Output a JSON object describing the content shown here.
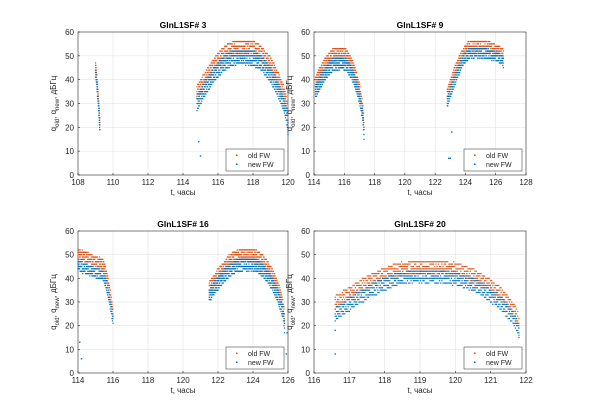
{
  "chart_data": [
    {
      "type": "scatter",
      "title": "GlnL1SF# 3",
      "xlabel": "t, часы",
      "ylabel": "q_old, q_new, дБГц",
      "xlim": [
        108,
        120
      ],
      "ylim": [
        0,
        60
      ],
      "xticks": [
        108,
        110,
        112,
        114,
        116,
        118,
        120
      ],
      "yticks": [
        0,
        10,
        20,
        30,
        40,
        50,
        60
      ],
      "grid": true,
      "legend": "bottom-right",
      "series": [
        {
          "name": "old FW",
          "color": "#d95319",
          "segments": [
            {
              "t0": 109.0,
              "t1": 109.25,
              "shape": "drop",
              "peak": 47,
              "end": 24,
              "spread": 4
            },
            {
              "t0": 114.8,
              "t1": 120.0,
              "shape": "arc",
              "start": 37,
              "peak": 56,
              "end": 27,
              "spread": 7
            }
          ]
        },
        {
          "name": "new FW",
          "color": "#0072bd",
          "segments": [
            {
              "t0": 109.0,
              "t1": 109.25,
              "shape": "drop",
              "peak": 44,
              "end": 21,
              "spread": 4
            },
            {
              "t0": 114.8,
              "t1": 120.0,
              "shape": "arc",
              "start": 33,
              "peak": 52,
              "end": 22,
              "spread": 7
            }
          ],
          "outliers": [
            [
              114.9,
              14
            ],
            [
              115.0,
              8
            ]
          ]
        }
      ]
    },
    {
      "type": "scatter",
      "title": "GlnL1SF# 9",
      "xlabel": "t, часы",
      "ylabel": "q_old, q_new, дБГц",
      "xlim": [
        114,
        128
      ],
      "ylim": [
        0,
        60
      ],
      "xticks": [
        114,
        116,
        118,
        120,
        122,
        124,
        126,
        128
      ],
      "yticks": [
        0,
        10,
        20,
        30,
        40,
        50,
        60
      ],
      "grid": true,
      "legend": "bottom-right",
      "series": [
        {
          "name": "old FW",
          "color": "#d95319",
          "segments": [
            {
              "t0": 114.1,
              "t1": 117.3,
              "shape": "arc",
              "start": 41,
              "peak": 53,
              "end": 22,
              "spread": 6
            },
            {
              "t0": 122.8,
              "t1": 126.5,
              "shape": "arc",
              "start": 36,
              "peak": 56,
              "end": 52,
              "spread": 5
            }
          ]
        },
        {
          "name": "new FW",
          "color": "#0072bd",
          "segments": [
            {
              "t0": 114.1,
              "t1": 117.3,
              "shape": "arc",
              "start": 37,
              "peak": 49,
              "end": 20,
              "spread": 6
            },
            {
              "t0": 122.8,
              "t1": 126.5,
              "shape": "arc",
              "start": 32,
              "peak": 53,
              "end": 49,
              "spread": 5
            }
          ],
          "outliers": [
            [
              122.9,
              7
            ],
            [
              123.0,
              7
            ],
            [
              123.1,
              18
            ]
          ]
        }
      ]
    },
    {
      "type": "scatter",
      "title": "GlnL1SF# 16",
      "xlabel": "t, часы",
      "ylabel": "q_old, q_new, дБГц",
      "xlim": [
        114,
        126
      ],
      "ylim": [
        0,
        60
      ],
      "xticks": [
        114,
        116,
        118,
        120,
        122,
        124,
        126
      ],
      "yticks": [
        0,
        10,
        20,
        30,
        40,
        50,
        60
      ],
      "grid": true,
      "legend": "bottom-right",
      "series": [
        {
          "name": "old FW",
          "color": "#d95319",
          "segments": [
            {
              "t0": 114.0,
              "t1": 116.0,
              "shape": "fall",
              "start": 52,
              "peak": 52,
              "end": 27,
              "spread": 5
            },
            {
              "t0": 121.5,
              "t1": 125.8,
              "shape": "arc",
              "start": 38,
              "peak": 52,
              "end": 25,
              "spread": 6
            }
          ]
        },
        {
          "name": "new FW",
          "color": "#0072bd",
          "segments": [
            {
              "t0": 114.0,
              "t1": 116.0,
              "shape": "fall",
              "start": 47,
              "peak": 47,
              "end": 24,
              "spread": 5
            },
            {
              "t0": 121.5,
              "t1": 125.8,
              "shape": "arc",
              "start": 35,
              "peak": 48,
              "end": 22,
              "spread": 6
            }
          ],
          "outliers": [
            [
              114.1,
              13
            ],
            [
              114.2,
              6
            ],
            [
              125.9,
              8
            ],
            [
              125.95,
              17
            ]
          ]
        }
      ]
    },
    {
      "type": "scatter",
      "title": "GlnL1SF# 20",
      "xlabel": "t, часы",
      "ylabel": "q_old, q_new, дБГц",
      "xlim": [
        116,
        122
      ],
      "ylim": [
        0,
        60
      ],
      "xticks": [
        116,
        117,
        118,
        119,
        120,
        121,
        122
      ],
      "yticks": [
        0,
        10,
        20,
        30,
        40,
        50,
        60
      ],
      "grid": true,
      "legend": "bottom-right",
      "series": [
        {
          "name": "old FW",
          "color": "#d95319",
          "segments": [
            {
              "t0": 116.6,
              "t1": 121.8,
              "shape": "arc",
              "start": 32,
              "peak": 47,
              "end": 23,
              "spread": 6
            }
          ]
        },
        {
          "name": "new FW",
          "color": "#0072bd",
          "segments": [
            {
              "t0": 116.6,
              "t1": 121.8,
              "shape": "arc",
              "start": 27,
              "peak": 43,
              "end": 19,
              "spread": 6
            }
          ],
          "outliers": [
            [
              116.6,
              18
            ],
            [
              116.6,
              8
            ]
          ]
        }
      ]
    }
  ]
}
